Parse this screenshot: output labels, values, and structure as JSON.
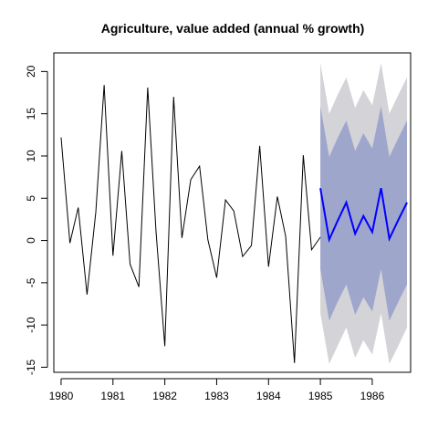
{
  "chart_data": {
    "type": "line",
    "title": "Agriculture, value added (annual % growth)",
    "xlabel": "",
    "ylabel": "",
    "xlim": [
      1979.86,
      1986.74
    ],
    "ylim": [
      -15.6,
      22.2
    ],
    "x_ticks": [
      1980,
      1981,
      1982,
      1983,
      1984,
      1985,
      1986
    ],
    "y_ticks": [
      -15,
      -10,
      -5,
      0,
      5,
      10,
      15,
      20
    ],
    "grid": false,
    "legend": "none",
    "series": [
      {
        "color": "#000000",
        "x": [
          1980.0,
          1980.17,
          1980.33,
          1980.5,
          1980.67,
          1980.83,
          1981.0,
          1981.17,
          1981.33,
          1981.5,
          1981.67,
          1981.83,
          1982.0,
          1982.17,
          1982.33,
          1982.5,
          1982.67,
          1982.83,
          1983.0,
          1983.17,
          1983.33,
          1983.5,
          1983.67,
          1983.83,
          1984.0,
          1984.17,
          1984.33,
          1984.5,
          1984.67,
          1984.83,
          1985.0
        ],
        "values": [
          12.2,
          -0.3,
          3.9,
          -6.4,
          3.4,
          18.4,
          -1.8,
          10.6,
          -2.8,
          -5.5,
          18.1,
          1.1,
          -12.5,
          17.0,
          0.3,
          7.2,
          8.8,
          0.1,
          -4.4,
          4.8,
          3.5,
          -1.9,
          -0.6,
          11.2,
          -3.1,
          5.2,
          0.5,
          -14.5,
          10.1,
          -1.1,
          0.4
        ]
      },
      {
        "color": "#0000ff",
        "x": [
          1985.0,
          1985.17,
          1985.33,
          1985.5,
          1985.67,
          1985.83,
          1986.0,
          1986.17,
          1986.33,
          1986.5,
          1986.67
        ],
        "values": [
          6.2,
          0.1,
          2.3,
          4.5,
          0.8,
          2.9,
          1.0,
          6.2,
          0.2,
          2.4,
          4.5
        ]
      }
    ],
    "bands": [
      {
        "level": "outer",
        "color": "#d3d3d8",
        "upper": [
          21.0,
          15.0,
          17.2,
          19.3,
          15.7,
          17.8,
          16.0,
          21.0,
          15.0,
          17.2,
          19.3
        ],
        "lower": [
          -8.6,
          -14.6,
          -12.5,
          -10.3,
          -13.9,
          -11.8,
          -13.5,
          -8.6,
          -14.6,
          -12.5,
          -10.3
        ]
      },
      {
        "level": "inner",
        "color": "#9fa6cc",
        "upper": [
          15.9,
          9.9,
          12.1,
          14.2,
          10.6,
          12.7,
          10.9,
          15.9,
          9.9,
          12.1,
          14.2
        ],
        "lower": [
          -3.4,
          -9.5,
          -7.3,
          -5.2,
          -8.8,
          -6.7,
          -8.4,
          -3.4,
          -9.5,
          -7.3,
          -5.2
        ]
      }
    ]
  }
}
